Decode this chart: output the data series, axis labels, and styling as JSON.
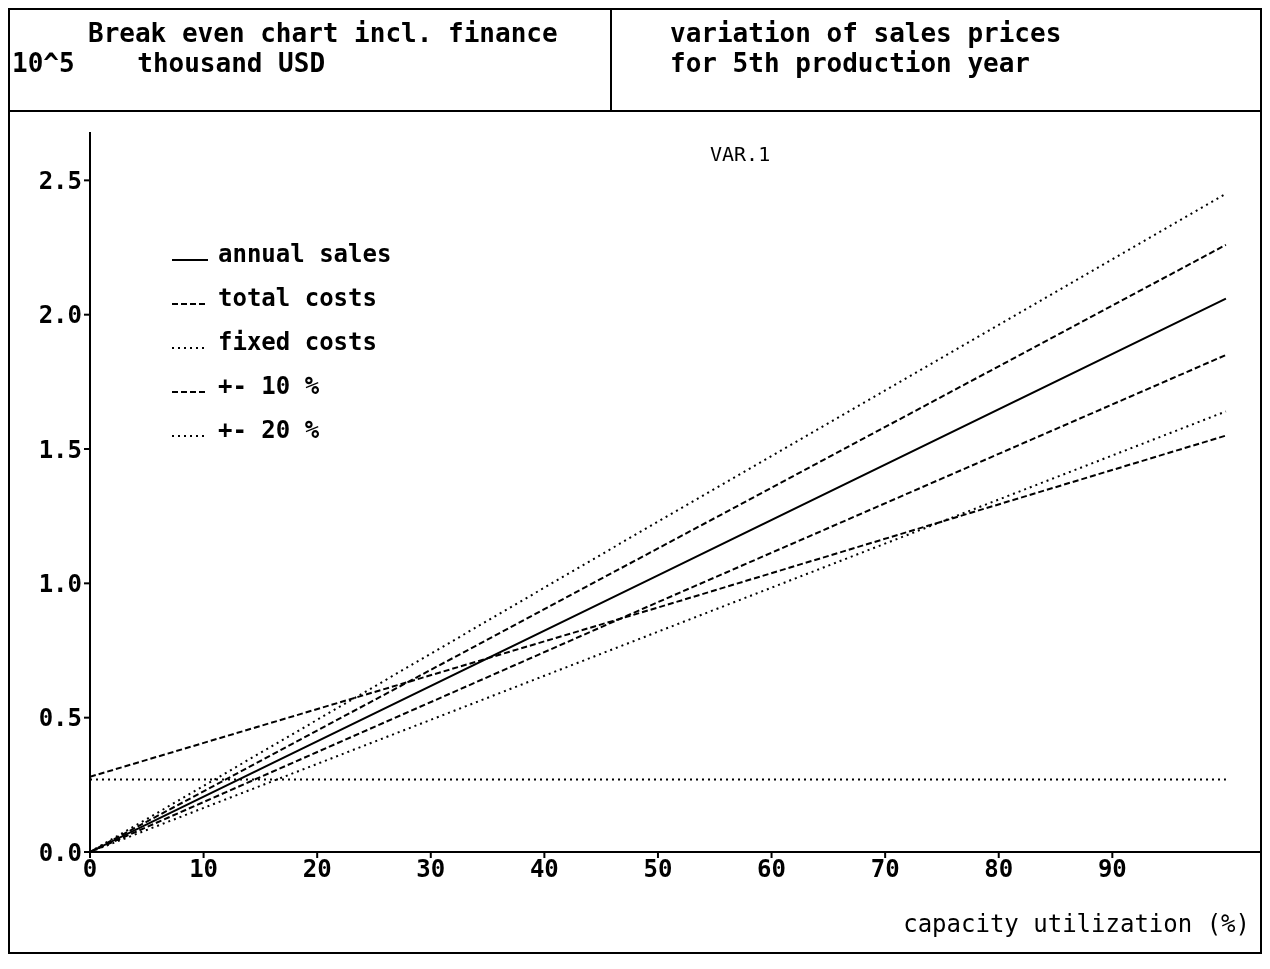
{
  "chart_data": {
    "type": "line",
    "title": "Break even chart incl. finance",
    "subtitle": "variation of sales prices\nfor 5th production year",
    "ylabel": "10^5    thousand USD",
    "xlabel": "capacity utilization (%)",
    "annotations": [
      "VAR.1"
    ],
    "x": [
      0,
      50,
      100
    ],
    "series": [
      {
        "name": "annual sales",
        "color": "#000000",
        "line_style": "solid",
        "values": [
          0,
          1.03,
          2.06
        ]
      },
      {
        "name": "total costs",
        "color": "#000000",
        "line_style": "dashed",
        "values": [
          0.28,
          0.91,
          1.55
        ]
      },
      {
        "name": "fixed costs",
        "color": "#000000",
        "line_style": "dotted",
        "values": [
          0.27,
          0.27,
          0.27
        ]
      },
      {
        "name": "+- 10 %",
        "color": "#000000",
        "line_style": "dashed",
        "values": [
          0,
          1.13,
          2.26
        ]
      },
      {
        "color": "#000000",
        "line_style": "dashed",
        "values": [
          0,
          0.93,
          1.85
        ]
      },
      {
        "name": "+- 20 %",
        "color": "#000000",
        "line_style": "dotted",
        "values": [
          0,
          1.23,
          2.45
        ]
      },
      {
        "color": "#000000",
        "line_style": "dotted",
        "values": [
          0,
          0.82,
          1.64
        ]
      }
    ],
    "xlim": [
      0,
      103
    ],
    "xticks": [
      0,
      10,
      20,
      30,
      40,
      50,
      60,
      70,
      80,
      90
    ],
    "ylim": [
      0,
      2.68
    ],
    "yticks": [
      {
        "value": 0,
        "label": "0.0"
      },
      {
        "value": 0.5,
        "label": "0.5"
      },
      {
        "value": 1,
        "label": "1.0"
      },
      {
        "value": 1.5,
        "label": "1.5"
      },
      {
        "value": 2,
        "label": "2.0"
      },
      {
        "value": 2.5,
        "label": "2.5"
      }
    ],
    "grid": false,
    "legend": "top left",
    "marker": "none"
  }
}
